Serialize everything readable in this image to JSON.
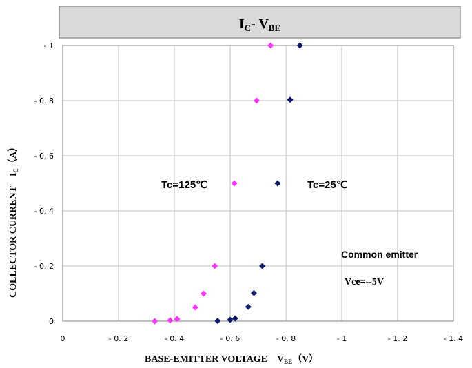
{
  "chart_data": {
    "type": "scatter",
    "title": {
      "main": "I",
      "sub1": "C",
      "mid": "- V",
      "sub2": "BE"
    },
    "xlabel": {
      "main": "BASE-EMITTER VOLTAGE",
      "sym": "V",
      "sub": "BE",
      "unit": "（V）"
    },
    "ylabel": {
      "main": "COLLECTOR CURRENT",
      "sym": "I",
      "sub": "C",
      "unit": "（A）"
    },
    "xlim": [
      0,
      1.4
    ],
    "ylim": [
      0,
      1
    ],
    "x_ticks": [
      {
        "value": 0,
        "label": "0"
      },
      {
        "value": 0.2,
        "label": "- 0. 2"
      },
      {
        "value": 0.4,
        "label": "- 0. 4"
      },
      {
        "value": 0.6,
        "label": "- 0. 6"
      },
      {
        "value": 0.8,
        "label": "- 0. 8"
      },
      {
        "value": 1.0,
        "label": "- 1"
      },
      {
        "value": 1.2,
        "label": "- 1. 2"
      },
      {
        "value": 1.4,
        "label": "- 1. 4"
      }
    ],
    "y_ticks": [
      {
        "value": 0,
        "label": "0"
      },
      {
        "value": 0.2,
        "label": "- 0. 2"
      },
      {
        "value": 0.4,
        "label": "- 0. 4"
      },
      {
        "value": 0.6,
        "label": "- 0. 6"
      },
      {
        "value": 0.8,
        "label": "- 0. 8"
      },
      {
        "value": 1.0,
        "label": "- 1"
      }
    ],
    "grid": true,
    "series": [
      {
        "name": "Tc=125℃",
        "color": "#ff33ff",
        "points": [
          [
            0.33,
            0.0
          ],
          [
            0.385,
            0.003
          ],
          [
            0.41,
            0.008
          ],
          [
            0.475,
            0.05
          ],
          [
            0.505,
            0.1
          ],
          [
            0.545,
            0.2
          ],
          [
            0.615,
            0.5
          ],
          [
            0.695,
            0.8
          ],
          [
            0.745,
            1.0
          ]
        ]
      },
      {
        "name": "Tc=25℃",
        "color": "#0d1a6e",
        "points": [
          [
            0.555,
            0.001
          ],
          [
            0.6,
            0.005
          ],
          [
            0.618,
            0.01
          ],
          [
            0.665,
            0.052
          ],
          [
            0.685,
            0.102
          ],
          [
            0.715,
            0.2
          ],
          [
            0.77,
            0.5
          ],
          [
            0.815,
            0.803
          ],
          [
            0.85,
            1.0
          ]
        ]
      }
    ],
    "annotations": {
      "common_emitter": "Common emitter",
      "vce": "Vce=--5V"
    }
  }
}
